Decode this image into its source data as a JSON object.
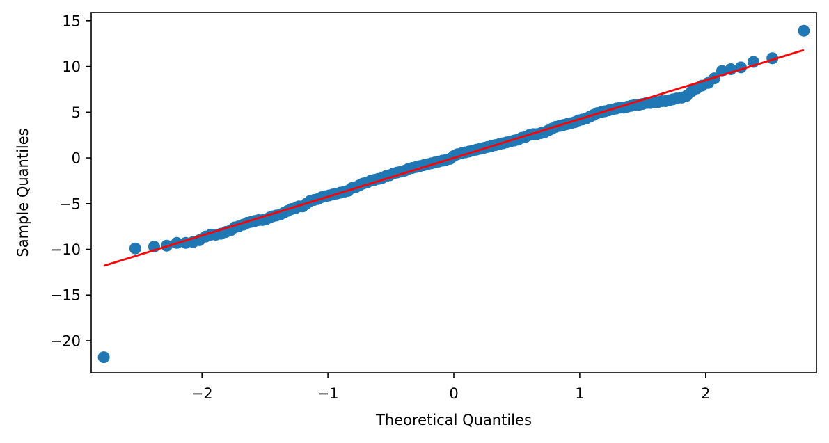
{
  "chart_data": {
    "type": "scatter",
    "title": "",
    "xlabel": "Theoretical Quantiles",
    "ylabel": "Sample Quantiles",
    "xlim": [
      -2.88,
      2.88
    ],
    "ylim": [
      -23.5,
      15.9
    ],
    "grid": false,
    "legend": "none",
    "x_ticks": [
      {
        "value": -2,
        "label": "−2"
      },
      {
        "value": -1,
        "label": "−1"
      },
      {
        "value": 0,
        "label": "0"
      },
      {
        "value": 1,
        "label": "1"
      },
      {
        "value": 2,
        "label": "2"
      }
    ],
    "y_ticks": [
      {
        "value": 15,
        "label": "15"
      },
      {
        "value": 10,
        "label": "10"
      },
      {
        "value": 5,
        "label": "5"
      },
      {
        "value": 0,
        "label": "0"
      },
      {
        "value": -5,
        "label": "−5"
      },
      {
        "value": -10,
        "label": "−10"
      },
      {
        "value": -15,
        "label": "−15"
      },
      {
        "value": -20,
        "label": "−20"
      }
    ],
    "series": [
      {
        "type": "scatter",
        "color": "#1f77b4",
        "points": [
          [
            -2.78,
            -21.8
          ],
          [
            -2.53,
            -9.9
          ],
          [
            -2.38,
            -9.7
          ],
          [
            -2.28,
            -9.6
          ],
          [
            -2.2,
            -9.3
          ],
          [
            -2.13,
            -9.3
          ],
          [
            -2.07,
            -9.2
          ],
          [
            -2.02,
            -9.0
          ],
          [
            -1.97,
            -8.6
          ],
          [
            -1.93,
            -8.4
          ],
          [
            -1.89,
            -8.4
          ],
          [
            -1.85,
            -8.3
          ],
          [
            -1.81,
            -8.1
          ],
          [
            -1.77,
            -7.9
          ],
          [
            -1.74,
            -7.6
          ],
          [
            -1.71,
            -7.5
          ],
          [
            -1.67,
            -7.3
          ],
          [
            -1.64,
            -7.1
          ],
          [
            -1.61,
            -7.0
          ],
          [
            -1.58,
            -6.9
          ],
          [
            -1.55,
            -6.8
          ],
          [
            -1.52,
            -6.8
          ],
          [
            -1.49,
            -6.7
          ],
          [
            -1.46,
            -6.5
          ],
          [
            -1.44,
            -6.4
          ],
          [
            -1.41,
            -6.3
          ],
          [
            -1.38,
            -6.2
          ],
          [
            -1.35,
            -6.0
          ],
          [
            -1.32,
            -5.8
          ],
          [
            -1.29,
            -5.6
          ],
          [
            -1.26,
            -5.5
          ],
          [
            -1.23,
            -5.3
          ],
          [
            -1.2,
            -5.3
          ],
          [
            -1.17,
            -5.0
          ],
          [
            -1.14,
            -4.7
          ],
          [
            -1.11,
            -4.6
          ],
          [
            -1.08,
            -4.5
          ],
          [
            -1.05,
            -4.3
          ],
          [
            -1.02,
            -4.2
          ],
          [
            -0.99,
            -4.1
          ],
          [
            -0.96,
            -4.0
          ],
          [
            -0.93,
            -3.9
          ],
          [
            -0.9,
            -3.8
          ],
          [
            -0.87,
            -3.7
          ],
          [
            -0.84,
            -3.6
          ],
          [
            -0.81,
            -3.3
          ],
          [
            -0.78,
            -3.2
          ],
          [
            -0.75,
            -3.0
          ],
          [
            -0.72,
            -2.8
          ],
          [
            -0.69,
            -2.7
          ],
          [
            -0.66,
            -2.5
          ],
          [
            -0.63,
            -2.4
          ],
          [
            -0.6,
            -2.3
          ],
          [
            -0.57,
            -2.2
          ],
          [
            -0.54,
            -2.0
          ],
          [
            -0.51,
            -1.9
          ],
          [
            -0.48,
            -1.7
          ],
          [
            -0.45,
            -1.6
          ],
          [
            -0.42,
            -1.5
          ],
          [
            -0.39,
            -1.4
          ],
          [
            -0.36,
            -1.2
          ],
          [
            -0.33,
            -1.1
          ],
          [
            -0.3,
            -1.0
          ],
          [
            -0.27,
            -0.9
          ],
          [
            -0.24,
            -0.8
          ],
          [
            -0.21,
            -0.7
          ],
          [
            -0.18,
            -0.6
          ],
          [
            -0.15,
            -0.5
          ],
          [
            -0.12,
            -0.4
          ],
          [
            -0.09,
            -0.3
          ],
          [
            -0.06,
            -0.2
          ],
          [
            -0.03,
            -0.1
          ],
          [
            0.0,
            0.2
          ],
          [
            0.03,
            0.4
          ],
          [
            0.06,
            0.5
          ],
          [
            0.09,
            0.6
          ],
          [
            0.12,
            0.7
          ],
          [
            0.15,
            0.8
          ],
          [
            0.18,
            0.9
          ],
          [
            0.21,
            1.0
          ],
          [
            0.24,
            1.1
          ],
          [
            0.27,
            1.2
          ],
          [
            0.3,
            1.3
          ],
          [
            0.33,
            1.4
          ],
          [
            0.36,
            1.5
          ],
          [
            0.39,
            1.6
          ],
          [
            0.42,
            1.7
          ],
          [
            0.45,
            1.8
          ],
          [
            0.48,
            1.9
          ],
          [
            0.51,
            2.0
          ],
          [
            0.54,
            2.2
          ],
          [
            0.57,
            2.3
          ],
          [
            0.6,
            2.5
          ],
          [
            0.63,
            2.6
          ],
          [
            0.66,
            2.6
          ],
          [
            0.69,
            2.7
          ],
          [
            0.72,
            2.8
          ],
          [
            0.75,
            3.0
          ],
          [
            0.78,
            3.2
          ],
          [
            0.81,
            3.4
          ],
          [
            0.84,
            3.5
          ],
          [
            0.87,
            3.6
          ],
          [
            0.9,
            3.7
          ],
          [
            0.93,
            3.8
          ],
          [
            0.96,
            3.9
          ],
          [
            0.99,
            4.1
          ],
          [
            1.02,
            4.2
          ],
          [
            1.05,
            4.3
          ],
          [
            1.08,
            4.5
          ],
          [
            1.11,
            4.7
          ],
          [
            1.14,
            4.9
          ],
          [
            1.17,
            5.0
          ],
          [
            1.2,
            5.1
          ],
          [
            1.23,
            5.2
          ],
          [
            1.26,
            5.3
          ],
          [
            1.29,
            5.4
          ],
          [
            1.32,
            5.5
          ],
          [
            1.35,
            5.5
          ],
          [
            1.38,
            5.6
          ],
          [
            1.41,
            5.7
          ],
          [
            1.44,
            5.8
          ],
          [
            1.47,
            5.8
          ],
          [
            1.5,
            5.9
          ],
          [
            1.53,
            6.0
          ],
          [
            1.56,
            6.0
          ],
          [
            1.59,
            6.1
          ],
          [
            1.62,
            6.1
          ],
          [
            1.65,
            6.2
          ],
          [
            1.68,
            6.2
          ],
          [
            1.71,
            6.3
          ],
          [
            1.74,
            6.4
          ],
          [
            1.77,
            6.5
          ],
          [
            1.81,
            6.6
          ],
          [
            1.85,
            6.8
          ],
          [
            1.89,
            7.3
          ],
          [
            1.93,
            7.6
          ],
          [
            1.97,
            7.9
          ],
          [
            2.02,
            8.2
          ],
          [
            2.07,
            8.7
          ],
          [
            2.13,
            9.5
          ],
          [
            2.2,
            9.7
          ],
          [
            2.28,
            9.9
          ],
          [
            2.38,
            10.5
          ],
          [
            2.53,
            10.9
          ],
          [
            2.78,
            13.9
          ]
        ]
      },
      {
        "type": "line",
        "color": "#ff0000",
        "x": [
          -2.78,
          2.78
        ],
        "y": [
          -11.8,
          11.8
        ]
      }
    ]
  }
}
